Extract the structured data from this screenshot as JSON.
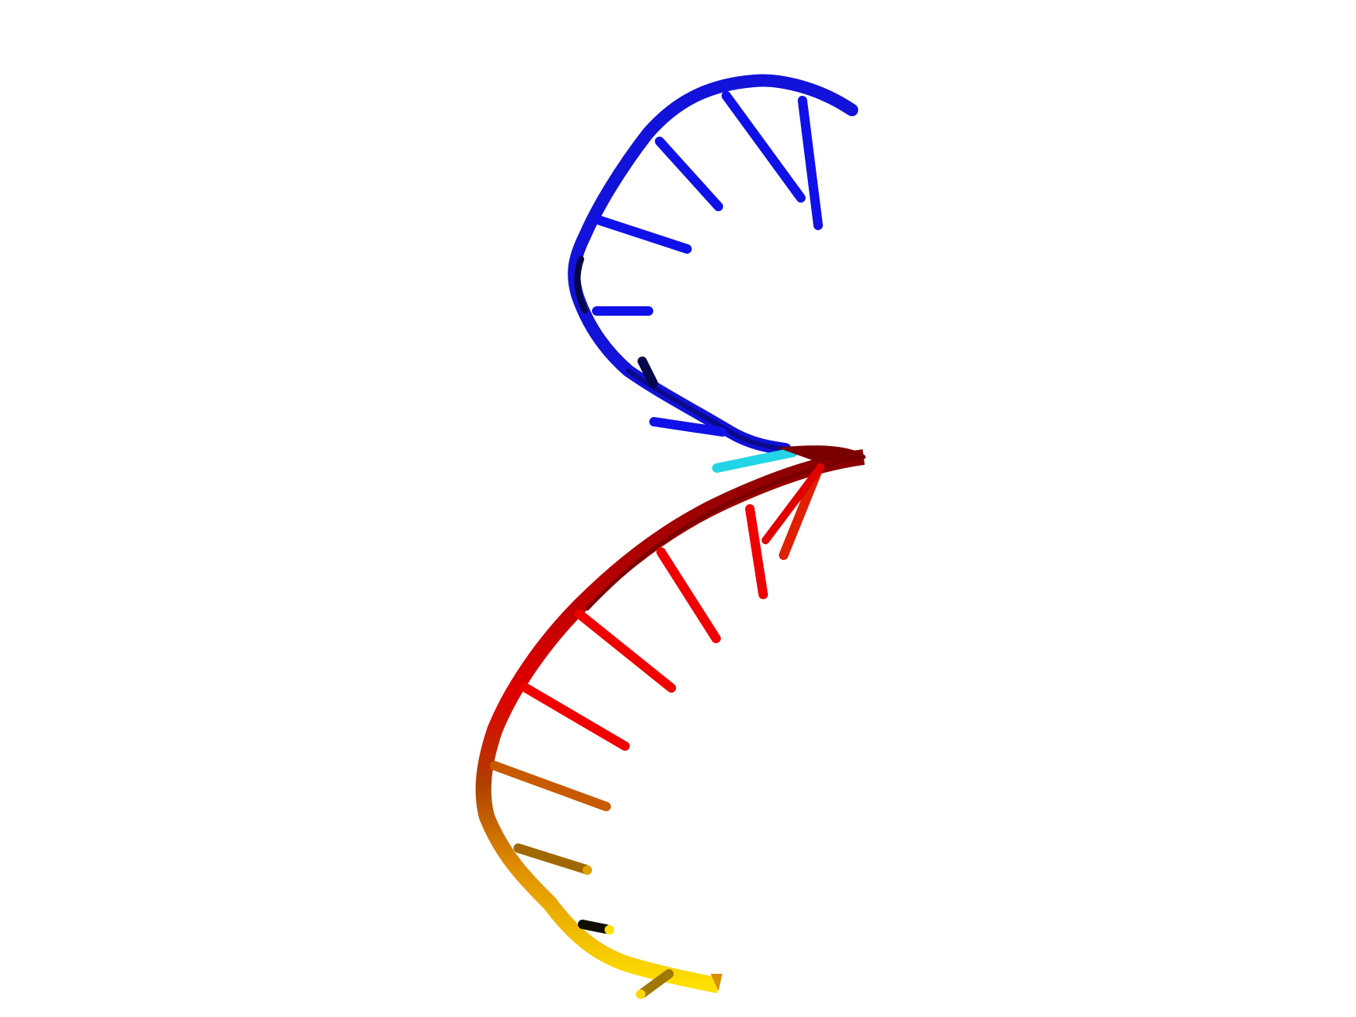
{
  "render": {
    "background": "#ffffff",
    "colors": {
      "blue": "#1010e8",
      "blue_dark": "#0a0a9a",
      "cyan": "#22d4e6",
      "red": "#f00000",
      "red_dark": "#8a0000",
      "orange": "#c85a00",
      "amber": "#d89000",
      "yellow": "#ffe000",
      "black": "#000000"
    }
  }
}
